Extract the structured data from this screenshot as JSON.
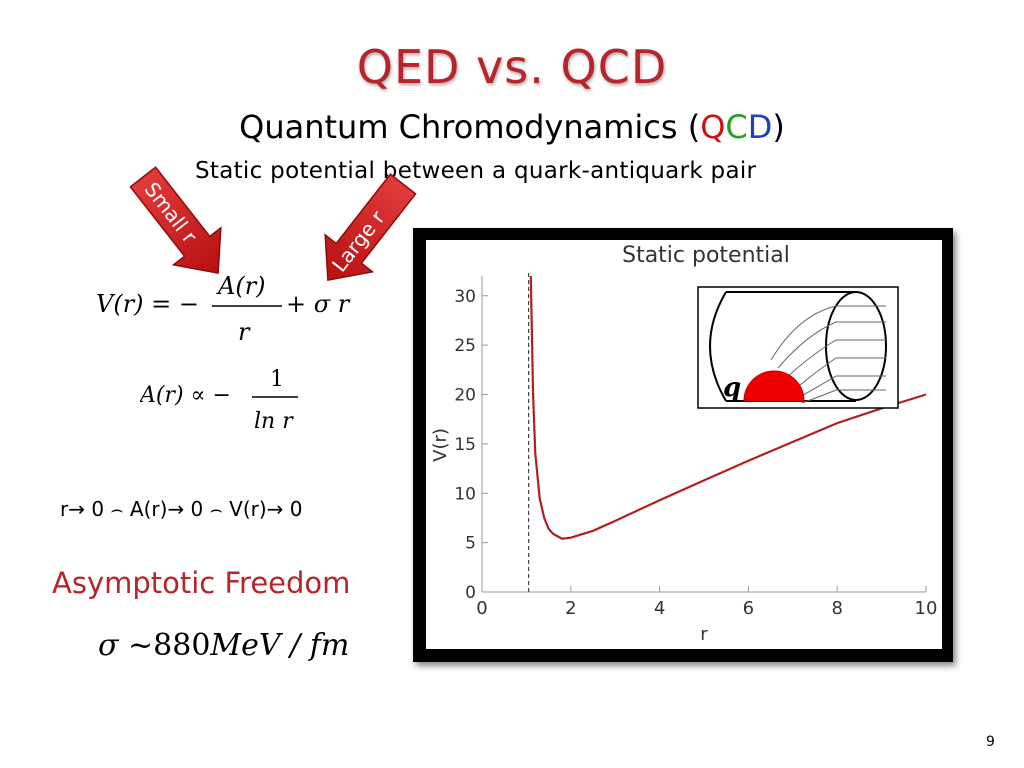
{
  "slide": {
    "title": "QED vs. QCD",
    "subtitle_main": "Quantum Chromodynamics (",
    "subtitle_q": "Q",
    "subtitle_c": "C",
    "subtitle_d": "D",
    "subtitle_close": ")",
    "tagline": "Static potential between a quark-antiquark pair",
    "arrow_small": "Small r",
    "arrow_large": "Large r",
    "limit_text": "r→ 0 ⌢ A(r)→ 0 ⌢ V(r)→ 0",
    "asymptotic": "Asymptotic Freedom",
    "sigma_value": "880",
    "sigma_unit": "MeV / fm",
    "page_number": "9",
    "quark_label": "q"
  },
  "equations": {
    "eq1_lhs": "V(r) = −",
    "eq1_num": "A(r)",
    "eq1_den": "r",
    "eq1_rhs": "+ σ r",
    "eq2_lhs": "A(r) ∝ −",
    "eq2_num": "1",
    "eq2_den": "ln r",
    "sigma_symbol": "σ ~"
  },
  "colors": {
    "title": "#b5252b",
    "curve": "#b02020",
    "arrow": "#cc1111",
    "quark": "#ee0000"
  },
  "chart_data": {
    "type": "line",
    "title": "Static potential",
    "xlabel": "r",
    "ylabel": "V(r)",
    "xlim": [
      0,
      10
    ],
    "ylim": [
      0,
      32
    ],
    "xticks": [
      0,
      2,
      4,
      6,
      8,
      10
    ],
    "yticks": [
      0,
      5,
      10,
      15,
      20,
      25,
      30
    ],
    "grid": false,
    "asymptote_x": 1.05,
    "series": [
      {
        "x": [
          1.1,
          1.15,
          1.2,
          1.3,
          1.4,
          1.5,
          1.6,
          1.8,
          2.0,
          2.5,
          3.0,
          4.0,
          5.0,
          6.0,
          7.0,
          8.0,
          9.0,
          10.0
        ],
        "y": [
          32,
          20,
          14,
          9.5,
          7.5,
          6.4,
          5.9,
          5.4,
          5.5,
          6.2,
          7.2,
          9.3,
          11.3,
          13.3,
          15.2,
          17.1,
          18.6,
          20.0
        ]
      }
    ]
  }
}
